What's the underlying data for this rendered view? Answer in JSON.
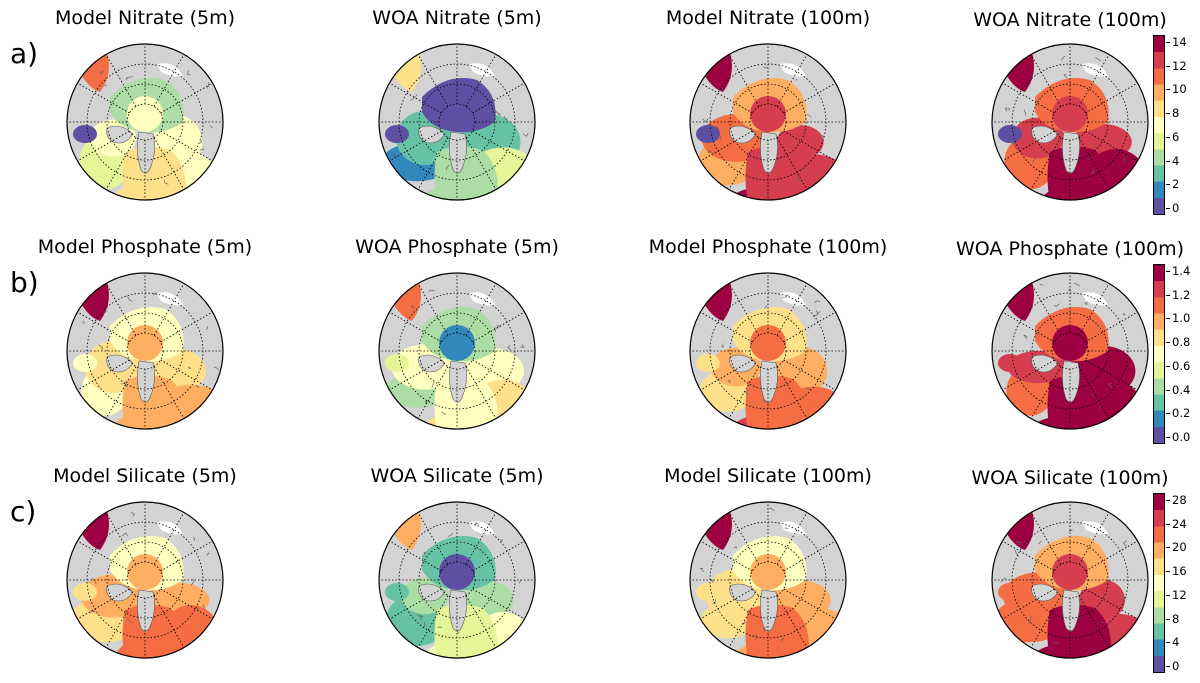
{
  "rows": [
    {
      "label": "a)",
      "titles": [
        "Model Nitrate (5m)",
        "WOA Nitrate (5m)",
        "Model Nitrate (100m)",
        "WOA Nitrate (100m)"
      ],
      "ticks": [
        "14",
        "12",
        "10",
        "8",
        "6",
        "4",
        "2",
        "0"
      ]
    },
    {
      "label": "b)",
      "titles": [
        "Model Phosphate (5m)",
        "WOA Phosphate (5m)",
        "Model Phosphate (100m)",
        "WOA Phosphate (100m)"
      ],
      "ticks": [
        "1.4",
        "1.2",
        "1.0",
        "0.8",
        "0.6",
        "0.4",
        "0.2",
        "0.0"
      ]
    },
    {
      "label": "c)",
      "titles": [
        "Model Silicate (5m)",
        "WOA Silicate (5m)",
        "Model Silicate (100m)",
        "WOA Silicate (100m)"
      ],
      "ticks": [
        "28",
        "24",
        "20",
        "16",
        "12",
        "8",
        "4",
        "0"
      ]
    }
  ],
  "panel_levels": [
    [
      0.45,
      0.2,
      0.78,
      0.85
    ],
    [
      0.58,
      0.42,
      0.68,
      0.88
    ],
    [
      0.62,
      0.32,
      0.62,
      0.8
    ]
  ],
  "colors": {
    "colormap": [
      "#5e4fa2",
      "#3288bd",
      "#66c2a5",
      "#abdda4",
      "#e6f598",
      "#ffffbf",
      "#fee08b",
      "#fdae61",
      "#f46d43",
      "#d53e4f",
      "#9e0142"
    ],
    "land": "#d3d3d3",
    "missing": "#ffffff"
  }
}
